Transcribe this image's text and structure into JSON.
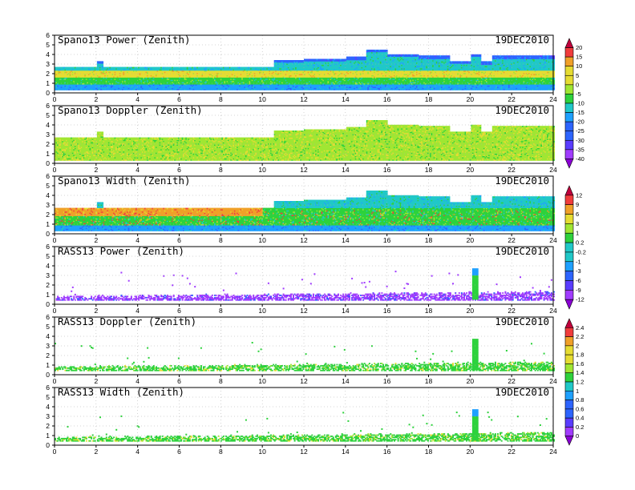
{
  "chart_data": [
    {
      "type": "heatmap",
      "title": "Spano13 Power (Zenith)",
      "date": "19DEC2010",
      "xlim": [
        0,
        24
      ],
      "ylim": [
        0,
        6
      ],
      "colorbar": 0,
      "bands": [
        {
          "x0": 0,
          "x1": 24,
          "y0": 0.3,
          "y1": 0.8,
          "c": 4
        },
        {
          "x0": 0,
          "x1": 24,
          "y0": 0.8,
          "y1": 1.6,
          "c": 6
        },
        {
          "x0": 0,
          "x1": 24,
          "y0": 1.6,
          "y1": 2.3,
          "c": 8
        },
        {
          "x0": 0,
          "x1": 24,
          "y0": 2.3,
          "y1": 2.7,
          "c": 5
        }
      ],
      "tops": [
        [
          0,
          2.7
        ],
        [
          2,
          3.3
        ],
        [
          2.3,
          2.7
        ],
        [
          10.5,
          3.4
        ],
        [
          12,
          3.5
        ],
        [
          13,
          3.5
        ],
        [
          14,
          3.7
        ],
        [
          15,
          4.5
        ],
        [
          16,
          4.0
        ],
        [
          17.5,
          3.8
        ],
        [
          19,
          3.3
        ],
        [
          20,
          4.0
        ],
        [
          20.5,
          3.2
        ],
        [
          21,
          3.8
        ],
        [
          24,
          3.8
        ]
      ]
    },
    {
      "type": "heatmap",
      "title": "Spano13 Doppler (Zenith)",
      "date": "19DEC2010",
      "xlim": [
        0,
        24
      ],
      "ylim": [
        0,
        6
      ],
      "colorbar": 0,
      "bands": [
        {
          "x0": 0,
          "x1": 24,
          "y0": 0.3,
          "y1": 2.7,
          "c": 7
        }
      ],
      "tops": [
        [
          0,
          2.7
        ],
        [
          2,
          3.3
        ],
        [
          2.3,
          2.7
        ],
        [
          10.5,
          3.4
        ],
        [
          12,
          3.5
        ],
        [
          13,
          3.5
        ],
        [
          14,
          3.7
        ],
        [
          15,
          4.5
        ],
        [
          16,
          4.0
        ],
        [
          17.5,
          3.8
        ],
        [
          19,
          3.3
        ],
        [
          20,
          4.0
        ],
        [
          20.5,
          3.2
        ],
        [
          21,
          3.8
        ],
        [
          24,
          3.8
        ]
      ]
    },
    {
      "type": "heatmap",
      "title": "Spano13 Width (Zenith)",
      "date": "19DEC2010",
      "xlim": [
        0,
        24
      ],
      "ylim": [
        0,
        6
      ],
      "colorbar": 1,
      "bands": [
        {
          "x0": 0,
          "x1": 24,
          "y0": 0.3,
          "y1": 0.8,
          "c": 4
        },
        {
          "x0": 0,
          "x1": 24,
          "y0": 0.8,
          "y1": 1.8,
          "c": 6
        },
        {
          "x0": 0,
          "x1": 10,
          "y0": 1.8,
          "y1": 2.6,
          "c": 9
        }
      ],
      "tops": [
        [
          0,
          2.7
        ],
        [
          2,
          3.3
        ],
        [
          2.3,
          2.7
        ],
        [
          10.5,
          3.4
        ],
        [
          12,
          3.5
        ],
        [
          13,
          3.5
        ],
        [
          14,
          3.7
        ],
        [
          15,
          4.5
        ],
        [
          16,
          4.0
        ],
        [
          17.5,
          3.8
        ],
        [
          19,
          3.3
        ],
        [
          20,
          4.0
        ],
        [
          20.5,
          3.2
        ],
        [
          21,
          3.8
        ],
        [
          24,
          3.8
        ]
      ]
    },
    {
      "type": "heatmap",
      "title": "RASS13 Power (Zenith)",
      "date": "19DEC2010",
      "xlim": [
        0,
        24
      ],
      "ylim": [
        0,
        6
      ],
      "colorbar": 1,
      "bands": [
        {
          "x0": 0,
          "x1": 24,
          "y0": 0.4,
          "y1": 0.8,
          "c": 1
        }
      ],
      "spike": {
        "x0": 20.1,
        "x1": 20.4,
        "y0": 0.5,
        "y1": 3.7,
        "c": 4
      }
    },
    {
      "type": "heatmap",
      "title": "RASS13 Doppler (Zenith)",
      "date": "19DEC2010",
      "xlim": [
        0,
        24
      ],
      "ylim": [
        0,
        6
      ],
      "colorbar": 2,
      "bands": [
        {
          "x0": 0,
          "x1": 24,
          "y0": 0.4,
          "y1": 0.8,
          "c": 6
        }
      ],
      "spike": {
        "x0": 20.1,
        "x1": 20.4,
        "y0": 0.5,
        "y1": 3.7,
        "c": 6
      }
    },
    {
      "type": "heatmap",
      "title": "RASS13 Width (Zenith)",
      "date": "19DEC2010",
      "xlim": [
        0,
        24
      ],
      "ylim": [
        0,
        6
      ],
      "colorbar": 2,
      "bands": [
        {
          "x0": 0,
          "x1": 24,
          "y0": 0.4,
          "y1": 0.8,
          "c": 6
        }
      ],
      "spike": {
        "x0": 20.1,
        "x1": 20.4,
        "y0": 0.5,
        "y1": 3.7,
        "c": 4
      }
    }
  ],
  "x_ticks": [
    "0",
    "2",
    "4",
    "6",
    "8",
    "10",
    "12",
    "14",
    "16",
    "18",
    "20",
    "22",
    "24"
  ],
  "y_ticks": [
    "0",
    "1",
    "2",
    "3",
    "4",
    "5",
    "6"
  ],
  "colorbars": [
    {
      "labels": [
        "20",
        "15",
        "10",
        "5",
        "0",
        "-5",
        "-10",
        "-15",
        "-20",
        "-25",
        "-30",
        "-35",
        "-40"
      ]
    },
    {
      "labels": [
        "12",
        "9",
        "6",
        "3",
        "1",
        "0.2",
        "-0.2",
        "-1",
        "-3",
        "-6",
        "-9",
        "-12"
      ]
    },
    {
      "labels": [
        "2.4",
        "2.2",
        "2",
        "1.8",
        "1.6",
        "1.4",
        "1.2",
        "1",
        "0.8",
        "0.6",
        "0.4",
        "0.2",
        "0"
      ]
    }
  ],
  "palette": [
    "#8a00d4",
    "#a13cff",
    "#5a3cff",
    "#2d64ff",
    "#1ea0ff",
    "#20c8c8",
    "#2dd23c",
    "#a0e632",
    "#e6dc32",
    "#f0a028",
    "#f03c3c",
    "#c0003c"
  ]
}
